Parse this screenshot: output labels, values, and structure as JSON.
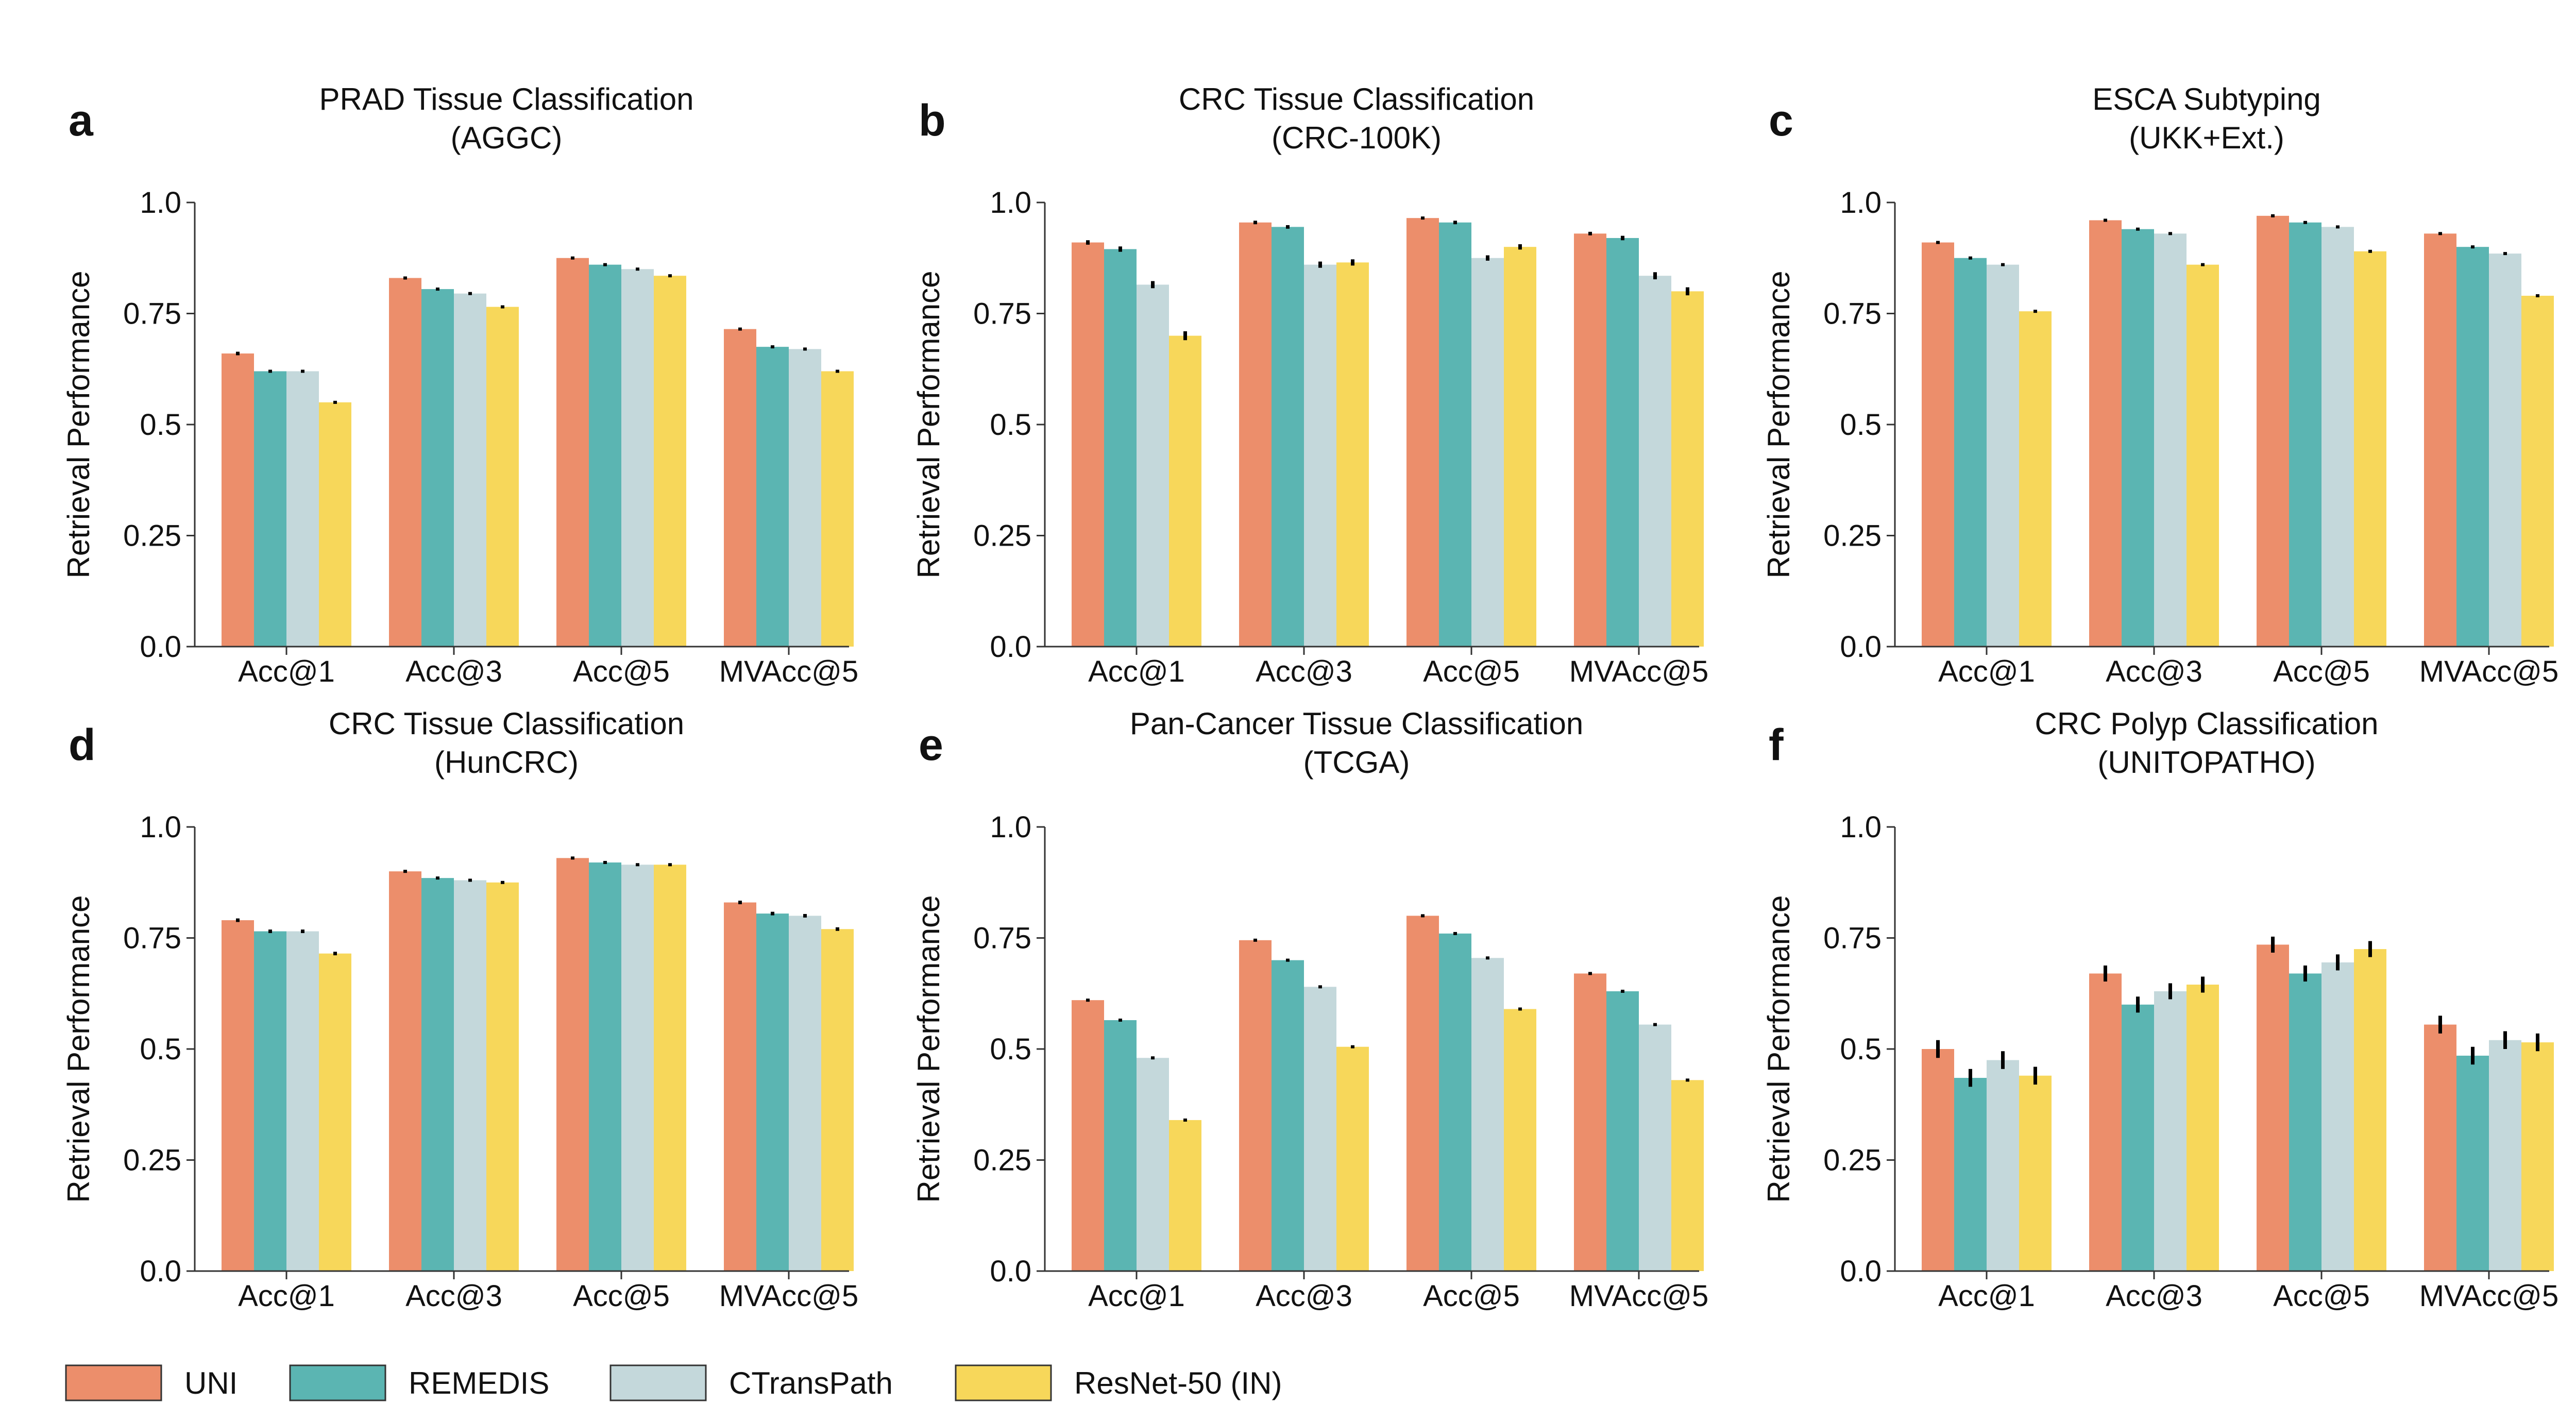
{
  "legend": [
    {
      "name": "UNI",
      "color": "#EC8E6B"
    },
    {
      "name": "REMEDIS",
      "color": "#5BB5B2"
    },
    {
      "name": "CTransPath",
      "color": "#C4D8DB"
    },
    {
      "name": "ResNet-50 (IN)",
      "color": "#F7D75A"
    }
  ],
  "chart_data": [
    {
      "letter": "a",
      "type": "bar",
      "title": [
        "PRAD Tissue Classification",
        "(AGGC)"
      ],
      "xlabel": "",
      "ylabel": "Retrieval Performance",
      "ylim": [
        0,
        1
      ],
      "yticks": [
        "0.0",
        "0.25",
        "0.5",
        "0.75",
        "1.0"
      ],
      "categories": [
        "Acc@1",
        "Acc@3",
        "Acc@5",
        "MVAcc@5"
      ],
      "series": [
        {
          "name": "UNI",
          "values": [
            0.66,
            0.83,
            0.875,
            0.715
          ],
          "err": [
            0.004,
            0.003,
            0.003,
            0.003
          ]
        },
        {
          "name": "REMEDIS",
          "values": [
            0.62,
            0.805,
            0.86,
            0.675
          ],
          "err": [
            0.003,
            0.003,
            0.003,
            0.003
          ]
        },
        {
          "name": "CTransPath",
          "values": [
            0.62,
            0.795,
            0.85,
            0.67
          ],
          "err": [
            0.003,
            0.003,
            0.003,
            0.003
          ]
        },
        {
          "name": "ResNet-50 (IN)",
          "values": [
            0.55,
            0.765,
            0.835,
            0.62
          ],
          "err": [
            0.003,
            0.003,
            0.003,
            0.003
          ]
        }
      ]
    },
    {
      "letter": "b",
      "type": "bar",
      "title": [
        "CRC Tissue Classification",
        "(CRC-100K)"
      ],
      "xlabel": "",
      "ylabel": "Retrieval Performance",
      "ylim": [
        0,
        1
      ],
      "yticks": [
        "0.0",
        "0.25",
        "0.5",
        "0.75",
        "1.0"
      ],
      "categories": [
        "Acc@1",
        "Acc@3",
        "Acc@5",
        "MVAcc@5"
      ],
      "series": [
        {
          "name": "UNI",
          "values": [
            0.91,
            0.955,
            0.965,
            0.93
          ],
          "err": [
            0.005,
            0.004,
            0.003,
            0.004
          ]
        },
        {
          "name": "REMEDIS",
          "values": [
            0.895,
            0.945,
            0.955,
            0.92
          ],
          "err": [
            0.006,
            0.004,
            0.004,
            0.005
          ]
        },
        {
          "name": "CTransPath",
          "values": [
            0.815,
            0.86,
            0.875,
            0.835
          ],
          "err": [
            0.008,
            0.007,
            0.006,
            0.008
          ]
        },
        {
          "name": "ResNet-50 (IN)",
          "values": [
            0.7,
            0.865,
            0.9,
            0.8
          ],
          "err": [
            0.01,
            0.007,
            0.006,
            0.009
          ]
        }
      ]
    },
    {
      "letter": "c",
      "type": "bar",
      "title": [
        "ESCA Subtyping",
        "(UKK+Ext.)"
      ],
      "xlabel": "",
      "ylabel": "Retrieval Performance",
      "ylim": [
        0,
        1
      ],
      "yticks": [
        "0.0",
        "0.25",
        "0.5",
        "0.75",
        "1.0"
      ],
      "categories": [
        "Acc@1",
        "Acc@3",
        "Acc@5",
        "MVAcc@5"
      ],
      "series": [
        {
          "name": "UNI",
          "values": [
            0.91,
            0.96,
            0.97,
            0.93
          ],
          "err": [
            0.002,
            0.002,
            0.002,
            0.002
          ]
        },
        {
          "name": "REMEDIS",
          "values": [
            0.875,
            0.94,
            0.955,
            0.9
          ],
          "err": [
            0.002,
            0.002,
            0.002,
            0.002
          ]
        },
        {
          "name": "CTransPath",
          "values": [
            0.86,
            0.93,
            0.945,
            0.885
          ],
          "err": [
            0.002,
            0.002,
            0.002,
            0.002
          ]
        },
        {
          "name": "ResNet-50 (IN)",
          "values": [
            0.755,
            0.86,
            0.89,
            0.79
          ],
          "err": [
            0.002,
            0.002,
            0.002,
            0.002
          ]
        }
      ]
    },
    {
      "letter": "d",
      "type": "bar",
      "title": [
        "CRC Tissue Classification",
        "(HunCRC)"
      ],
      "xlabel": "",
      "ylabel": "Retrieval Performance",
      "ylim": [
        0,
        1
      ],
      "yticks": [
        "0.0",
        "0.25",
        "0.5",
        "0.75",
        "1.0"
      ],
      "categories": [
        "Acc@1",
        "Acc@3",
        "Acc@5",
        "MVAcc@5"
      ],
      "series": [
        {
          "name": "UNI",
          "values": [
            0.79,
            0.9,
            0.93,
            0.83
          ],
          "err": [
            0.004,
            0.003,
            0.002,
            0.004
          ]
        },
        {
          "name": "REMEDIS",
          "values": [
            0.765,
            0.885,
            0.92,
            0.805
          ],
          "err": [
            0.004,
            0.003,
            0.002,
            0.004
          ]
        },
        {
          "name": "CTransPath",
          "values": [
            0.765,
            0.88,
            0.915,
            0.8
          ],
          "err": [
            0.004,
            0.003,
            0.002,
            0.004
          ]
        },
        {
          "name": "ResNet-50 (IN)",
          "values": [
            0.715,
            0.875,
            0.915,
            0.77
          ],
          "err": [
            0.004,
            0.003,
            0.002,
            0.004
          ]
        }
      ]
    },
    {
      "letter": "e",
      "type": "bar",
      "title": [
        "Pan-Cancer Tissue Classification",
        "(TCGA)"
      ],
      "xlabel": "",
      "ylabel": "Retrieval Performance",
      "ylim": [
        0,
        1
      ],
      "yticks": [
        "0.0",
        "0.25",
        "0.5",
        "0.75",
        "1.0"
      ],
      "categories": [
        "Acc@1",
        "Acc@3",
        "Acc@5",
        "MVAcc@5"
      ],
      "series": [
        {
          "name": "UNI",
          "values": [
            0.61,
            0.745,
            0.8,
            0.67
          ],
          "err": [
            0.003,
            0.003,
            0.003,
            0.003
          ]
        },
        {
          "name": "REMEDIS",
          "values": [
            0.565,
            0.7,
            0.76,
            0.63
          ],
          "err": [
            0.003,
            0.003,
            0.003,
            0.003
          ]
        },
        {
          "name": "CTransPath",
          "values": [
            0.48,
            0.64,
            0.705,
            0.555
          ],
          "err": [
            0.003,
            0.003,
            0.003,
            0.003
          ]
        },
        {
          "name": "ResNet-50 (IN)",
          "values": [
            0.34,
            0.505,
            0.59,
            0.43
          ],
          "err": [
            0.003,
            0.003,
            0.003,
            0.003
          ]
        }
      ]
    },
    {
      "letter": "f",
      "type": "bar",
      "title": [
        "CRC Polyp Classification",
        "(UNITOPATHO)"
      ],
      "xlabel": "",
      "ylabel": "Retrieval Performance",
      "ylim": [
        0,
        1
      ],
      "yticks": [
        "0.0",
        "0.25",
        "0.5",
        "0.75",
        "1.0"
      ],
      "categories": [
        "Acc@1",
        "Acc@3",
        "Acc@5",
        "MVAcc@5"
      ],
      "series": [
        {
          "name": "UNI",
          "values": [
            0.5,
            0.67,
            0.735,
            0.555
          ],
          "err": [
            0.02,
            0.018,
            0.018,
            0.02
          ]
        },
        {
          "name": "REMEDIS",
          "values": [
            0.435,
            0.6,
            0.67,
            0.485
          ],
          "err": [
            0.02,
            0.018,
            0.018,
            0.02
          ]
        },
        {
          "name": "CTransPath",
          "values": [
            0.475,
            0.63,
            0.695,
            0.52
          ],
          "err": [
            0.02,
            0.018,
            0.018,
            0.02
          ]
        },
        {
          "name": "ResNet-50 (IN)",
          "values": [
            0.44,
            0.645,
            0.725,
            0.515
          ],
          "err": [
            0.02,
            0.018,
            0.018,
            0.02
          ]
        }
      ]
    }
  ]
}
